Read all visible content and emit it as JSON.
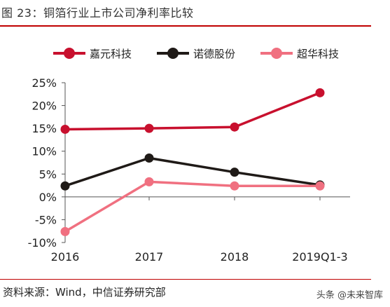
{
  "header": {
    "title": "图 23：铜箔行业上市公司净利率比较"
  },
  "footer": {
    "source": "资料来源：Wind，中信证券研究部",
    "watermark": "头条 @未来智库"
  },
  "chart_data": {
    "type": "line",
    "categories": [
      "2016",
      "2017",
      "2018",
      "2019Q1-3"
    ],
    "series": [
      {
        "name": "嘉元科技",
        "color": "#c8102e",
        "values": [
          14.8,
          15.0,
          15.3,
          22.8
        ]
      },
      {
        "name": "诺德股份",
        "color": "#1f1a17",
        "values": [
          2.4,
          8.5,
          5.4,
          2.6
        ]
      },
      {
        "name": "超华科技",
        "color": "#f07080",
        "values": [
          -7.6,
          3.3,
          2.4,
          2.4
        ]
      }
    ],
    "ylim": [
      -10,
      25
    ],
    "yticks": [
      "-10%",
      "-5%",
      "0%",
      "5%",
      "10%",
      "15%",
      "20%",
      "25%"
    ],
    "ytick_values": [
      -10,
      -5,
      0,
      5,
      10,
      15,
      20,
      25
    ],
    "legend_position": "top",
    "grid": false
  }
}
